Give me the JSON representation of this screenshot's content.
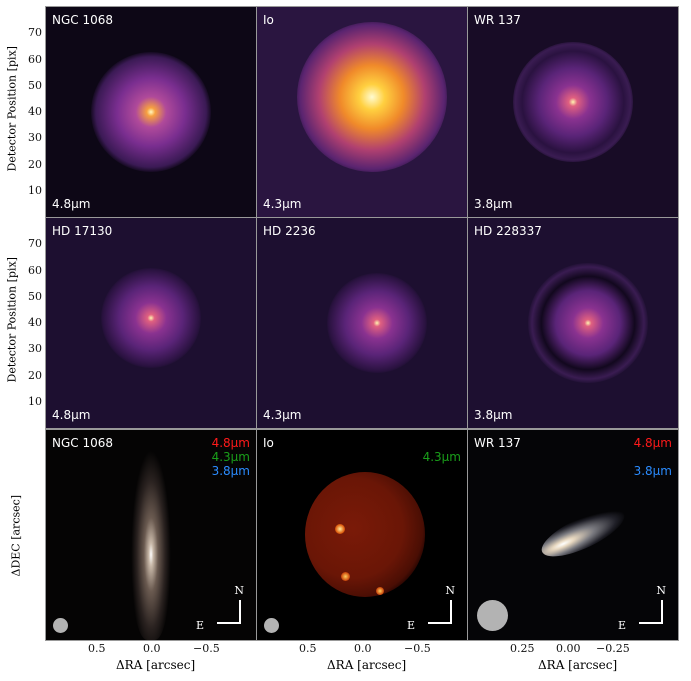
{
  "chart_data": {
    "type": "image-grid",
    "rows": [
      {
        "ylabel": "Detector Position [pix]",
        "yticks": [
          10,
          20,
          30,
          40,
          50,
          60,
          70
        ],
        "ylim": [
          0,
          80
        ],
        "panels": [
          {
            "name": "NGC 1068",
            "wavelength": "4.8µm"
          },
          {
            "name": "Io",
            "wavelength": "4.3µm"
          },
          {
            "name": "WR 137",
            "wavelength": "3.8µm"
          }
        ]
      },
      {
        "ylabel": "Detector Position [pix]",
        "yticks": [
          10,
          20,
          30,
          40,
          50,
          60,
          70
        ],
        "ylim": [
          0,
          80
        ],
        "panels": [
          {
            "name": "HD 17130",
            "wavelength": "4.8µm"
          },
          {
            "name": "HD 2236",
            "wavelength": "4.3µm"
          },
          {
            "name": "HD 228337",
            "wavelength": "3.8µm"
          }
        ]
      },
      {
        "ylabel": "ΔDEC [arcsec]",
        "xlabel": "ΔRA [arcsec]",
        "panels": [
          {
            "name": "NGC 1068",
            "bands": [
              "4.8µm",
              "4.3µm",
              "3.8µm"
            ],
            "xticks": [
              "0.5",
              "0.0",
              "−0.5"
            ]
          },
          {
            "name": "Io",
            "bands": [
              "4.3µm"
            ],
            "xticks": [
              "0.5",
              "0.0",
              "−0.5"
            ]
          },
          {
            "name": "WR 137",
            "bands": [
              "4.8µm",
              "3.8µm"
            ],
            "xticks": [
              "0.25",
              "0.00",
              "−0.25"
            ]
          }
        ]
      }
    ],
    "compass": {
      "north": "N",
      "east": "E"
    },
    "band_colors": {
      "4.8µm": "#ff1a1a",
      "4.3µm": "#1a9e1a",
      "3.8µm": "#2b8cff"
    }
  }
}
